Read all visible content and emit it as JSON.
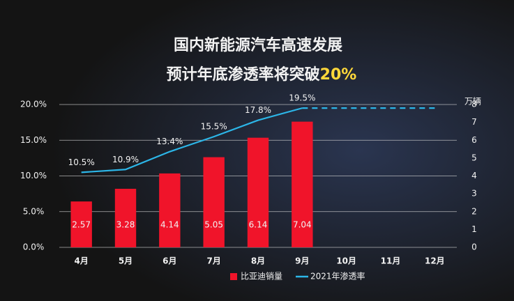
{
  "chart_data": {
    "type": "bar",
    "title": "国内新能源汽车高速发展",
    "subtitle": "预计年底渗透率将突破",
    "subtitle_highlight": "20%",
    "categories": [
      "4月",
      "5月",
      "6月",
      "7月",
      "8月",
      "9月",
      "10月",
      "11月",
      "12月"
    ],
    "series": [
      {
        "name": "比亚迪销量",
        "color": "#f0142a",
        "axis": "y2",
        "type": "bar",
        "values": [
          2.57,
          3.28,
          4.14,
          5.05,
          6.14,
          7.04,
          null,
          null,
          null
        ]
      },
      {
        "name": "2021年渗透率",
        "color": "#2cb6e8",
        "axis": "y",
        "type": "line",
        "values": [
          10.5,
          10.9,
          13.4,
          15.5,
          17.8,
          19.5,
          null,
          null,
          null
        ],
        "value_labels": [
          "10.5%",
          "10.9%",
          "13.4%",
          "15.5%",
          "17.8%",
          "19.5%",
          null,
          null,
          null
        ],
        "projected_values": [
          null,
          null,
          null,
          null,
          null,
          19.5,
          19.5,
          19.5,
          19.5
        ]
      }
    ],
    "ylim": [
      0,
      20
    ],
    "yticks": [
      {
        "value": 0,
        "label": "0.0%"
      },
      {
        "value": 5,
        "label": "5.0%"
      },
      {
        "value": 10,
        "label": "10.0%"
      },
      {
        "value": 15,
        "label": "15.0%"
      },
      {
        "value": 20,
        "label": "20.0%"
      }
    ],
    "y2label": "万辆",
    "y2lim": [
      0,
      8
    ],
    "y2ticks": [
      0,
      1,
      2,
      3,
      4,
      5,
      6,
      7,
      8
    ],
    "grid": true,
    "legend": "bottom"
  }
}
